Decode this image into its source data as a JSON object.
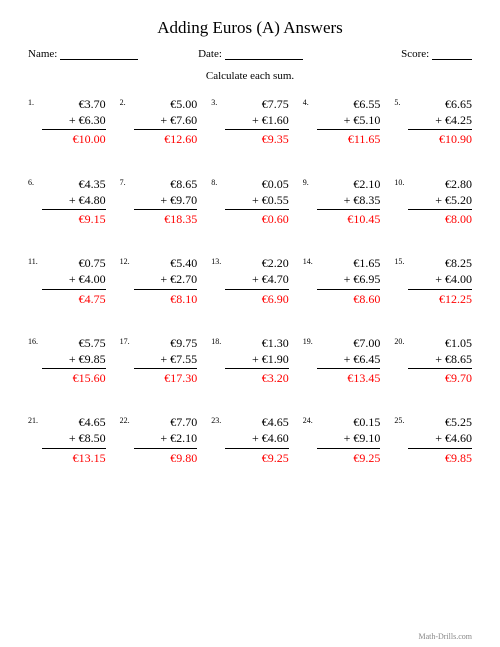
{
  "title": "Adding Euros (A) Answers",
  "header": {
    "name_label": "Name:",
    "date_label": "Date:",
    "score_label": "Score:"
  },
  "instruction": "Calculate each sum.",
  "currency": "€",
  "answer_color": "#ff0000",
  "problems": [
    {
      "n": "1.",
      "a": "€3.70",
      "b": "+ €6.30",
      "ans": "€10.00"
    },
    {
      "n": "2.",
      "a": "€5.00",
      "b": "+ €7.60",
      "ans": "€12.60"
    },
    {
      "n": "3.",
      "a": "€7.75",
      "b": "+ €1.60",
      "ans": "€9.35"
    },
    {
      "n": "4.",
      "a": "€6.55",
      "b": "+ €5.10",
      "ans": "€11.65"
    },
    {
      "n": "5.",
      "a": "€6.65",
      "b": "+ €4.25",
      "ans": "€10.90"
    },
    {
      "n": "6.",
      "a": "€4.35",
      "b": "+ €4.80",
      "ans": "€9.15"
    },
    {
      "n": "7.",
      "a": "€8.65",
      "b": "+ €9.70",
      "ans": "€18.35"
    },
    {
      "n": "8.",
      "a": "€0.05",
      "b": "+ €0.55",
      "ans": "€0.60"
    },
    {
      "n": "9.",
      "a": "€2.10",
      "b": "+ €8.35",
      "ans": "€10.45"
    },
    {
      "n": "10.",
      "a": "€2.80",
      "b": "+ €5.20",
      "ans": "€8.00"
    },
    {
      "n": "11.",
      "a": "€0.75",
      "b": "+ €4.00",
      "ans": "€4.75"
    },
    {
      "n": "12.",
      "a": "€5.40",
      "b": "+ €2.70",
      "ans": "€8.10"
    },
    {
      "n": "13.",
      "a": "€2.20",
      "b": "+ €4.70",
      "ans": "€6.90"
    },
    {
      "n": "14.",
      "a": "€1.65",
      "b": "+ €6.95",
      "ans": "€8.60"
    },
    {
      "n": "15.",
      "a": "€8.25",
      "b": "+ €4.00",
      "ans": "€12.25"
    },
    {
      "n": "16.",
      "a": "€5.75",
      "b": "+ €9.85",
      "ans": "€15.60"
    },
    {
      "n": "17.",
      "a": "€9.75",
      "b": "+ €7.55",
      "ans": "€17.30"
    },
    {
      "n": "18.",
      "a": "€1.30",
      "b": "+ €1.90",
      "ans": "€3.20"
    },
    {
      "n": "19.",
      "a": "€7.00",
      "b": "+ €6.45",
      "ans": "€13.45"
    },
    {
      "n": "20.",
      "a": "€1.05",
      "b": "+ €8.65",
      "ans": "€9.70"
    },
    {
      "n": "21.",
      "a": "€4.65",
      "b": "+ €8.50",
      "ans": "€13.15"
    },
    {
      "n": "22.",
      "a": "€7.70",
      "b": "+ €2.10",
      "ans": "€9.80"
    },
    {
      "n": "23.",
      "a": "€4.65",
      "b": "+ €4.60",
      "ans": "€9.25"
    },
    {
      "n": "24.",
      "a": "€0.15",
      "b": "+ €9.10",
      "ans": "€9.25"
    },
    {
      "n": "25.",
      "a": "€5.25",
      "b": "+ €4.60",
      "ans": "€9.85"
    }
  ],
  "footer": "Math-Drills.com"
}
